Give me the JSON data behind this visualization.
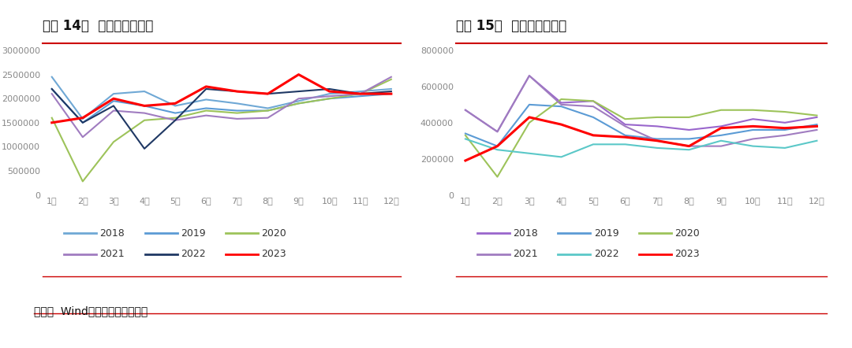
{
  "title_left": "图表 14：  中国乘用车销量",
  "title_right": "图表 15：  中国商用车销量",
  "source_text": "来源：  Wind，广金期货研究中心",
  "months": [
    "1月",
    "2月",
    "3月",
    "4月",
    "5月",
    "6月",
    "7月",
    "8月",
    "9月",
    "10月",
    "11月",
    "12月"
  ],
  "passenger": {
    "2018": [
      2450000,
      1580000,
      2100000,
      2150000,
      1850000,
      1980000,
      1900000,
      1800000,
      1950000,
      2100000,
      2150000,
      2200000
    ],
    "2019": [
      2200000,
      1500000,
      1950000,
      1850000,
      1700000,
      1800000,
      1750000,
      1750000,
      1900000,
      2000000,
      2050000,
      2100000
    ],
    "2020": [
      1600000,
      280000,
      1100000,
      1550000,
      1600000,
      1750000,
      1700000,
      1750000,
      1900000,
      2000000,
      2100000,
      2400000
    ],
    "2021": [
      2100000,
      1200000,
      1750000,
      1700000,
      1550000,
      1650000,
      1580000,
      1600000,
      2000000,
      2050000,
      2100000,
      2450000
    ],
    "2022": [
      2200000,
      1500000,
      1850000,
      960000,
      1550000,
      2200000,
      2150000,
      2100000,
      2150000,
      2200000,
      2100000,
      2150000
    ],
    "2023": [
      1500000,
      1600000,
      2000000,
      1850000,
      1900000,
      2250000,
      2150000,
      2100000,
      2500000,
      2150000,
      2100000,
      2100000
    ]
  },
  "commercial": {
    "2018": [
      470000,
      350000,
      660000,
      510000,
      520000,
      390000,
      380000,
      360000,
      380000,
      420000,
      400000,
      430000
    ],
    "2019": [
      340000,
      270000,
      500000,
      490000,
      430000,
      330000,
      310000,
      310000,
      330000,
      360000,
      360000,
      390000
    ],
    "2020": [
      330000,
      100000,
      400000,
      530000,
      520000,
      420000,
      430000,
      430000,
      470000,
      470000,
      460000,
      440000
    ],
    "2021": [
      470000,
      350000,
      660000,
      500000,
      490000,
      380000,
      300000,
      270000,
      270000,
      310000,
      330000,
      360000
    ],
    "2022": [
      310000,
      250000,
      230000,
      210000,
      280000,
      280000,
      260000,
      250000,
      300000,
      270000,
      260000,
      300000
    ],
    "2023": [
      190000,
      270000,
      430000,
      390000,
      330000,
      320000,
      300000,
      270000,
      370000,
      380000,
      370000,
      380000
    ]
  },
  "passenger_colors": {
    "2018": "#6fa8d5",
    "2019": "#5b9bd5",
    "2020": "#9dc35a",
    "2021": "#a07cc0",
    "2022": "#1f3864",
    "2023": "#ff0000"
  },
  "commercial_colors": {
    "2018": "#9966cc",
    "2019": "#5b9bd5",
    "2020": "#9dc35a",
    "2021": "#a07cc0",
    "2022": "#5bc8c8",
    "2023": "#ff0000"
  },
  "passenger_ylim": [
    0,
    3000000
  ],
  "commercial_ylim": [
    0,
    800000
  ],
  "legend_years": [
    "2018",
    "2019",
    "2020",
    "2021",
    "2022",
    "2023"
  ],
  "border_color": "#cc0000",
  "bg_color": "#ffffff",
  "title_fontsize": 12,
  "tick_fontsize": 8,
  "legend_fontsize": 9,
  "source_fontsize": 10
}
